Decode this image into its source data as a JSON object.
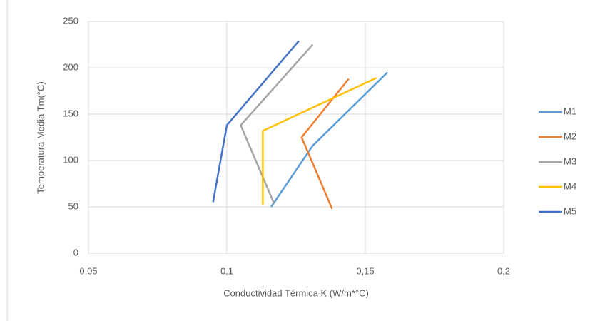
{
  "chart_data": {
    "type": "line",
    "x_label": "Conductividad Térmica K (W/m*°C)",
    "y_label": "Temperatura  Media  Tm(°C)",
    "series": [
      {
        "name": "M1",
        "color": "#5b9bd5",
        "x": [
          0.116,
          0.131,
          0.158
        ],
        "values": [
          50,
          116,
          195
        ]
      },
      {
        "name": "M2",
        "color": "#ed7d31",
        "x": [
          0.138,
          0.127,
          0.144
        ],
        "values": [
          48,
          125,
          188
        ]
      },
      {
        "name": "M3",
        "color": "#a5a5a5",
        "x": [
          0.117,
          0.105,
          0.131
        ],
        "values": [
          54,
          138,
          225
        ]
      },
      {
        "name": "M4",
        "color": "#ffc000",
        "x": [
          0.113,
          0.113,
          0.154
        ],
        "values": [
          52,
          132,
          189
        ]
      },
      {
        "name": "M5",
        "color": "#4472c4",
        "x": [
          0.095,
          0.1,
          0.126
        ],
        "values": [
          55,
          138,
          229
        ]
      }
    ],
    "xlim": [
      0.05,
      0.2
    ],
    "xticks": [
      {
        "value": 0.05,
        "label": "0,05"
      },
      {
        "value": 0.1,
        "label": "0,1"
      },
      {
        "value": 0.15,
        "label": "0,15"
      },
      {
        "value": 0.2,
        "label": "0,2"
      }
    ],
    "ylim": [
      0,
      250
    ],
    "yticks": [
      0,
      50,
      100,
      150,
      200,
      250
    ],
    "grid": true,
    "legend": "right"
  }
}
